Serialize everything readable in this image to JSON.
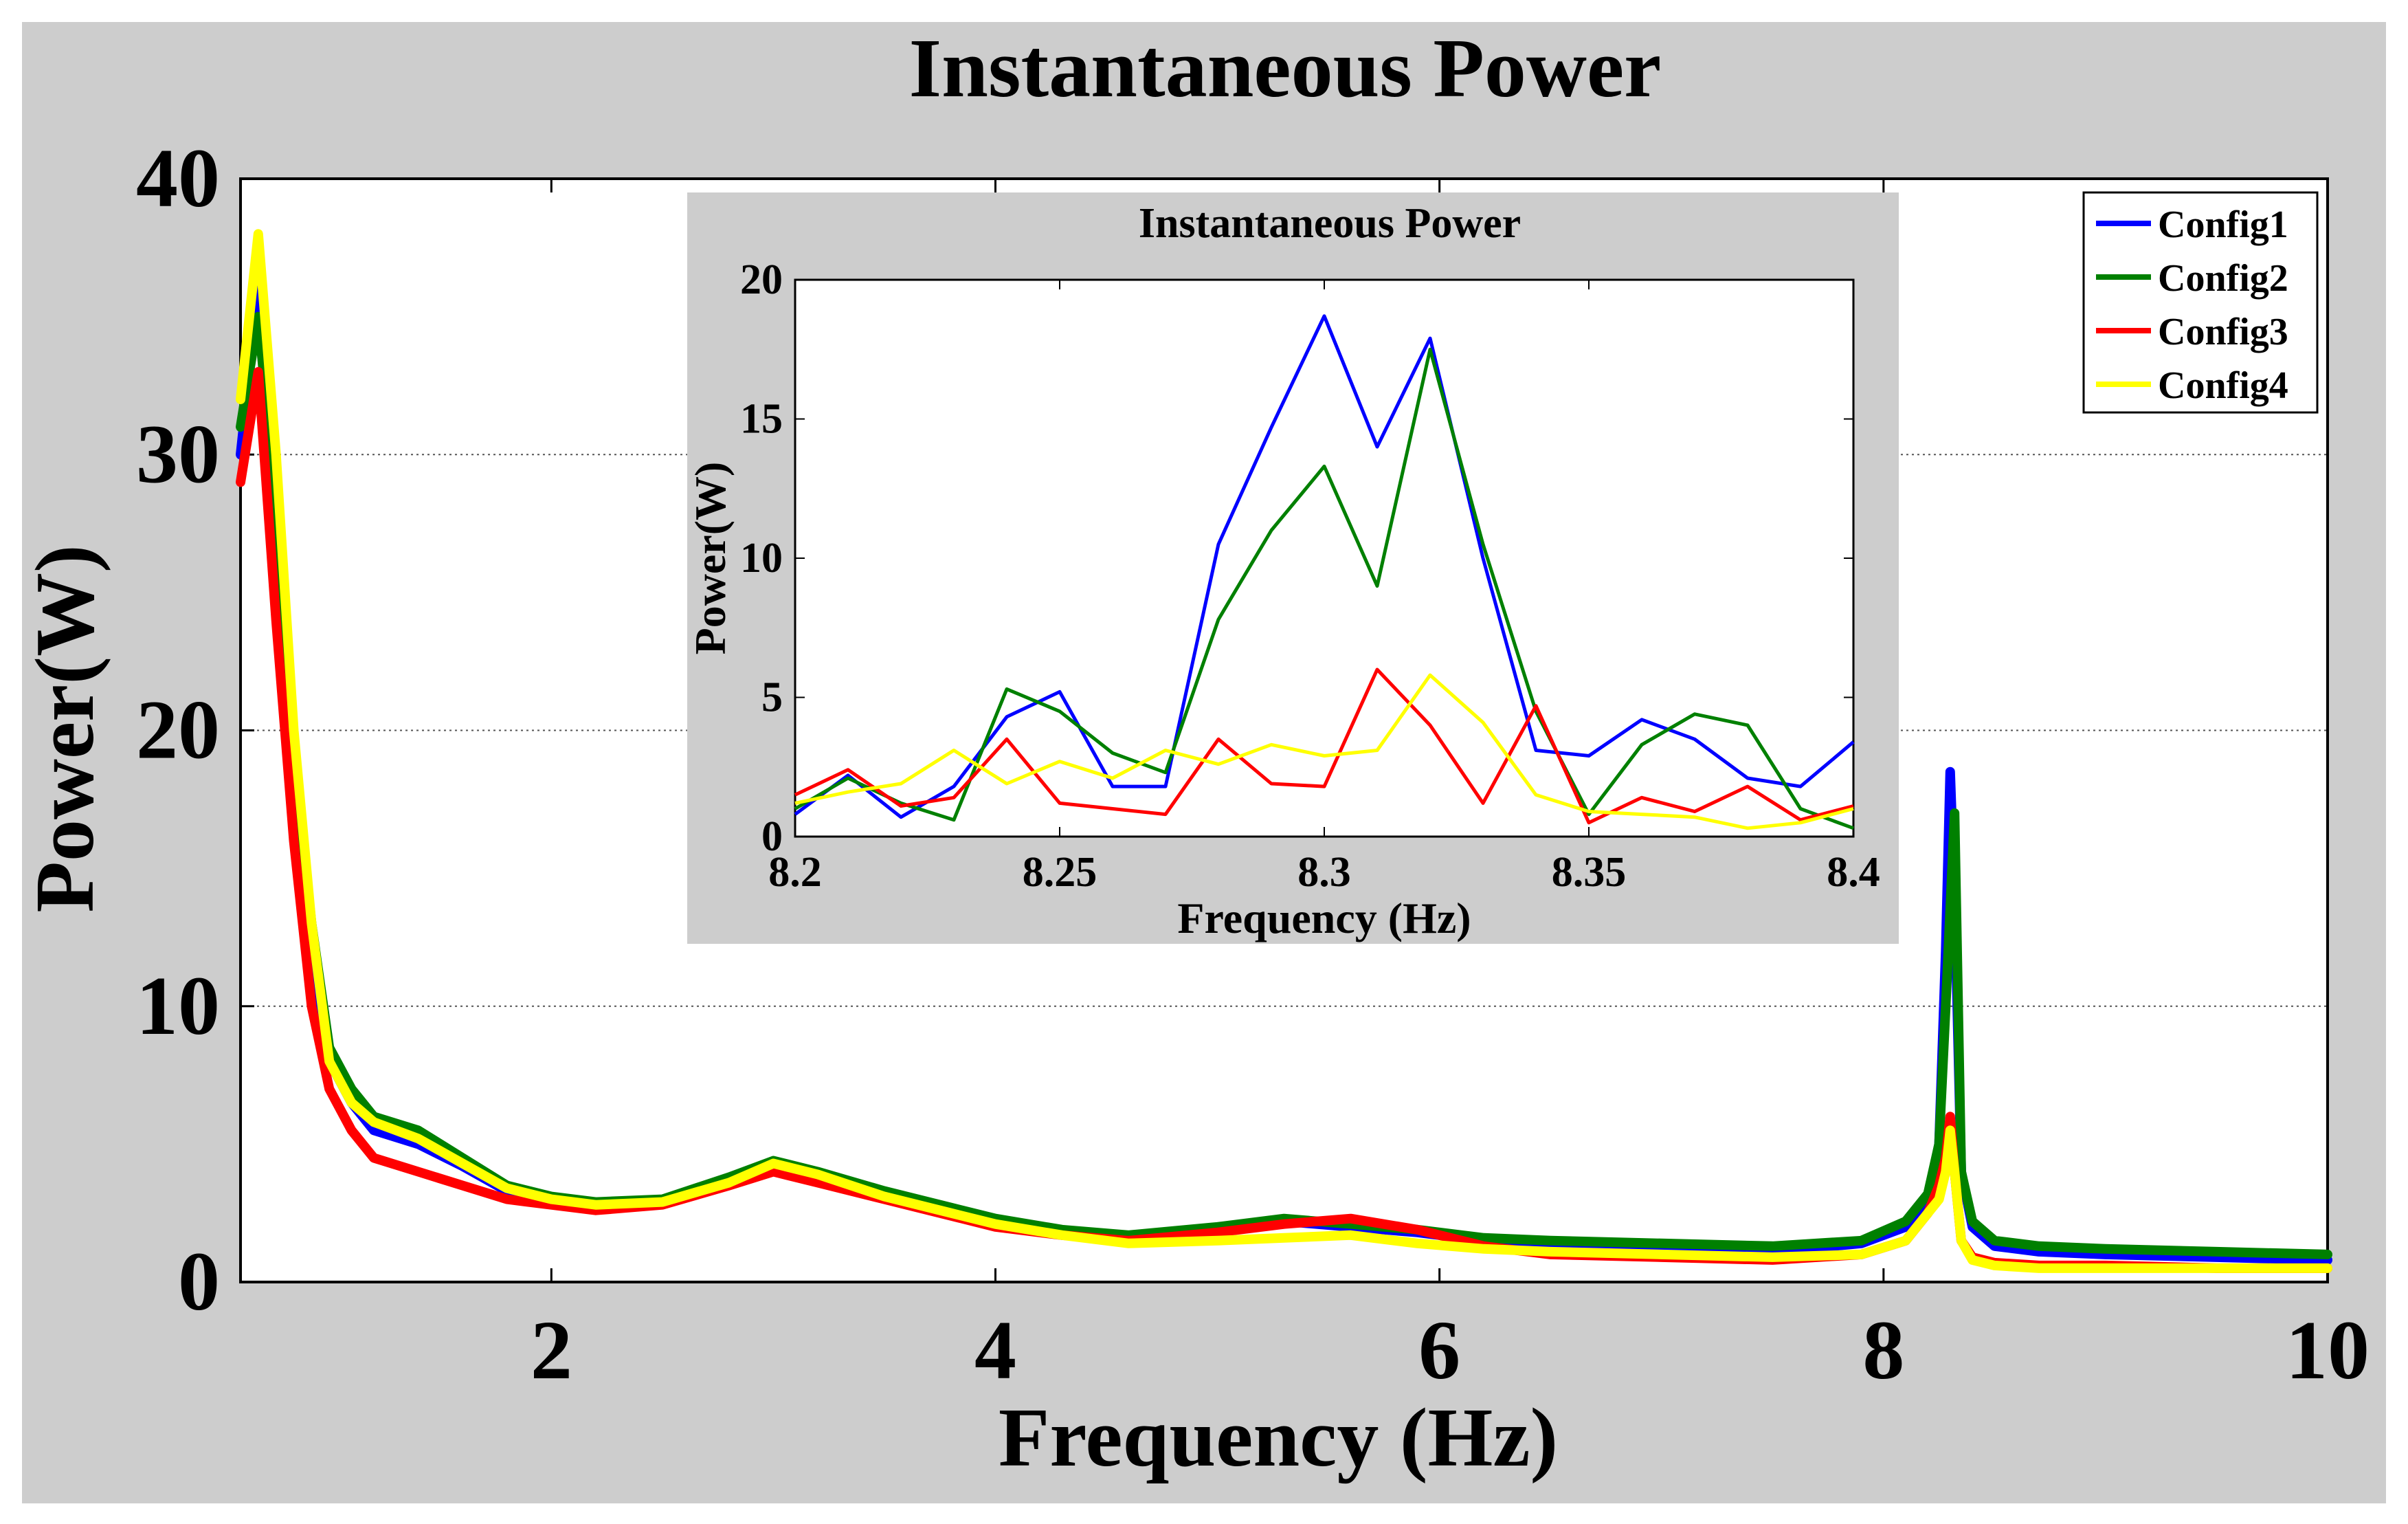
{
  "chart_data": [
    {
      "type": "line",
      "title": "Instantaneous Power",
      "xlabel": "Frequency (Hz)",
      "ylabel": "Power(W)",
      "xlim": [
        0.6,
        10
      ],
      "ylim": [
        0,
        40
      ],
      "xticks": [
        2,
        4,
        6,
        8,
        10
      ],
      "yticks": [
        0,
        10,
        20,
        30,
        40
      ],
      "grid": "horizontal dotted",
      "legend_position": "top-right",
      "series": [
        {
          "name": "Config1",
          "color": "#0000ff",
          "x": [
            0.6,
            0.68,
            0.76,
            0.84,
            0.92,
            1.0,
            1.1,
            1.2,
            1.4,
            1.6,
            1.8,
            2.0,
            2.2,
            2.5,
            2.8,
            3.0,
            3.2,
            3.5,
            3.8,
            4.0,
            4.3,
            4.6,
            5.0,
            5.3,
            5.6,
            5.9,
            6.2,
            6.5,
            7.0,
            7.5,
            7.9,
            8.1,
            8.2,
            8.25,
            8.28,
            8.3,
            8.32,
            8.35,
            8.4,
            8.5,
            8.7,
            9.0,
            9.5,
            10.0
          ],
          "values": [
            30,
            36,
            27,
            18,
            12,
            8,
            6.5,
            5.5,
            5.0,
            4.2,
            3.3,
            3.0,
            2.8,
            2.9,
            3.6,
            4.2,
            3.8,
            3.2,
            2.6,
            2.2,
            1.8,
            1.6,
            1.9,
            2.2,
            2.0,
            1.8,
            1.5,
            1.3,
            1.2,
            1.1,
            1.4,
            2.0,
            3.0,
            5.0,
            12.0,
            18.5,
            14.0,
            4.0,
            2.0,
            1.3,
            1.1,
            1.0,
            0.9,
            0.8
          ]
        },
        {
          "name": "Config2",
          "color": "#008000",
          "x": [
            0.6,
            0.68,
            0.76,
            0.84,
            0.92,
            1.0,
            1.1,
            1.2,
            1.4,
            1.6,
            1.8,
            2.0,
            2.2,
            2.5,
            2.8,
            3.0,
            3.2,
            3.5,
            3.8,
            4.0,
            4.3,
            4.6,
            5.0,
            5.3,
            5.6,
            5.9,
            6.2,
            6.5,
            7.0,
            7.5,
            7.9,
            8.1,
            8.2,
            8.25,
            8.28,
            8.3,
            8.32,
            8.35,
            8.4,
            8.5,
            8.7,
            9.0,
            9.5,
            10.0
          ],
          "values": [
            31,
            35,
            28,
            19,
            13,
            8.5,
            7.0,
            6.0,
            5.5,
            4.5,
            3.5,
            3.1,
            2.9,
            3.0,
            3.8,
            4.4,
            4.0,
            3.3,
            2.7,
            2.3,
            1.9,
            1.7,
            2.0,
            2.3,
            2.1,
            1.9,
            1.6,
            1.5,
            1.4,
            1.3,
            1.5,
            2.2,
            3.2,
            5.0,
            10.0,
            13.5,
            17.0,
            4.0,
            2.2,
            1.5,
            1.3,
            1.2,
            1.1,
            1.0
          ]
        },
        {
          "name": "Config3",
          "color": "#ff0000",
          "x": [
            0.6,
            0.68,
            0.76,
            0.84,
            0.92,
            1.0,
            1.1,
            1.2,
            1.4,
            1.6,
            1.8,
            2.0,
            2.2,
            2.5,
            2.8,
            3.0,
            3.2,
            3.5,
            3.8,
            4.0,
            4.3,
            4.6,
            5.0,
            5.3,
            5.6,
            5.9,
            6.2,
            6.5,
            7.0,
            7.5,
            7.9,
            8.1,
            8.2,
            8.25,
            8.28,
            8.3,
            8.32,
            8.35,
            8.4,
            8.5,
            8.7,
            9.0,
            9.5,
            10.0
          ],
          "values": [
            29,
            33,
            24,
            16,
            10,
            7.0,
            5.5,
            4.5,
            4.0,
            3.5,
            3.0,
            2.8,
            2.6,
            2.8,
            3.5,
            4.0,
            3.6,
            3.0,
            2.4,
            2.0,
            1.7,
            1.5,
            1.8,
            2.1,
            2.3,
            1.9,
            1.3,
            1.0,
            0.9,
            0.8,
            1.0,
            1.5,
            2.5,
            3.5,
            4.5,
            6.0,
            4.0,
            1.5,
            0.9,
            0.7,
            0.6,
            0.6,
            0.5,
            0.5
          ]
        },
        {
          "name": "Config4",
          "color": "#ffff00",
          "x": [
            0.6,
            0.68,
            0.76,
            0.84,
            0.92,
            1.0,
            1.1,
            1.2,
            1.4,
            1.6,
            1.8,
            2.0,
            2.2,
            2.5,
            2.8,
            3.0,
            3.2,
            3.5,
            3.8,
            4.0,
            4.3,
            4.6,
            5.0,
            5.3,
            5.6,
            5.9,
            6.2,
            6.5,
            7.0,
            7.5,
            7.9,
            8.1,
            8.2,
            8.25,
            8.28,
            8.3,
            8.32,
            8.35,
            8.4,
            8.5,
            8.7,
            9.0,
            9.5,
            10.0
          ],
          "values": [
            32,
            38,
            30,
            20,
            13,
            8.0,
            6.5,
            5.8,
            5.2,
            4.3,
            3.4,
            3.0,
            2.8,
            2.9,
            3.6,
            4.3,
            3.9,
            3.1,
            2.5,
            2.1,
            1.7,
            1.4,
            1.5,
            1.6,
            1.7,
            1.4,
            1.2,
            1.1,
            1.0,
            0.9,
            1.0,
            1.5,
            2.5,
            3.0,
            4.0,
            5.5,
            4.0,
            1.5,
            0.8,
            0.6,
            0.5,
            0.5,
            0.5,
            0.5
          ]
        }
      ]
    },
    {
      "type": "line",
      "title": "Instantaneous Power",
      "xlabel": "Frequency (Hz)",
      "ylabel": "Power(W)",
      "xlim": [
        8.2,
        8.4
      ],
      "ylim": [
        0,
        20
      ],
      "xticks": [
        8.2,
        8.25,
        8.3,
        8.35,
        8.4
      ],
      "xtick_labels": [
        "8.2",
        "8.25",
        "8.3",
        "8.35",
        "8.4"
      ],
      "yticks": [
        0,
        5,
        10,
        15,
        20
      ],
      "grid": "none",
      "x": [
        8.2,
        8.21,
        8.22,
        8.23,
        8.24,
        8.25,
        8.26,
        8.27,
        8.28,
        8.29,
        8.3,
        8.31,
        8.32,
        8.33,
        8.34,
        8.35,
        8.36,
        8.37,
        8.38,
        8.39,
        8.4
      ],
      "series": [
        {
          "name": "Config1",
          "color": "#0000ff",
          "values": [
            0.8,
            2.2,
            0.7,
            1.8,
            4.3,
            5.2,
            1.8,
            1.8,
            10.5,
            14.7,
            18.7,
            14.0,
            17.9,
            10.0,
            3.1,
            2.9,
            4.2,
            3.5,
            2.1,
            1.8,
            3.4
          ]
        },
        {
          "name": "Config2",
          "color": "#008000",
          "values": [
            1.0,
            2.1,
            1.2,
            0.6,
            5.3,
            4.5,
            3.0,
            2.3,
            7.8,
            11.0,
            13.3,
            9.0,
            17.5,
            10.5,
            4.5,
            0.8,
            3.3,
            4.4,
            4.0,
            1.0,
            0.3
          ]
        },
        {
          "name": "Config3",
          "color": "#ff0000",
          "values": [
            1.5,
            2.4,
            1.1,
            1.4,
            3.5,
            1.2,
            1.0,
            0.8,
            3.5,
            1.9,
            1.8,
            6.0,
            4.0,
            1.2,
            4.7,
            0.5,
            1.4,
            0.9,
            1.8,
            0.6,
            1.1
          ]
        },
        {
          "name": "Config4",
          "color": "#ffff00",
          "values": [
            1.2,
            1.6,
            1.9,
            3.1,
            1.9,
            2.7,
            2.1,
            3.1,
            2.6,
            3.3,
            2.9,
            3.1,
            5.8,
            4.1,
            1.5,
            0.9,
            0.8,
            0.7,
            0.3,
            0.5,
            1.0
          ]
        }
      ]
    }
  ]
}
